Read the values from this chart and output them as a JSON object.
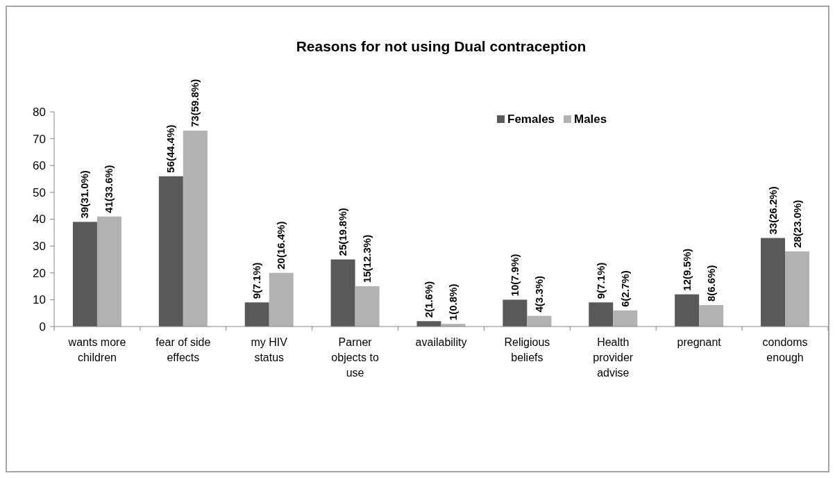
{
  "chart_data": {
    "type": "bar",
    "title": "Reasons for not using Dual contraception",
    "categories": [
      "wants more children",
      "fear of side effects",
      "my HIV status",
      "Parner objects to use",
      "availability",
      "Religious beliefs",
      "Health provider advise",
      "pregnant",
      "condoms enough"
    ],
    "series": [
      {
        "name": "Females",
        "color": "#595959",
        "values": [
          39,
          56,
          9,
          25,
          2,
          10,
          9,
          12,
          33
        ],
        "value_labels": [
          "39(31.0%)",
          "56(44.4%)",
          "9(7.1%)",
          "25(19.8%)",
          "2(1.6%)",
          "10(7.9%)",
          "9(7.1%)",
          "12(9.5%)",
          "33(26.2%)"
        ]
      },
      {
        "name": "Males",
        "color": "#b2b2b2",
        "values": [
          41,
          73,
          20,
          15,
          1,
          4,
          6,
          8,
          28
        ],
        "value_labels": [
          "41(33.6%)",
          "73(59.8%)",
          "20(16.4%)",
          "15(12.3%)",
          "1(0.8%)",
          "4(3.3%)",
          "6(2.7%)",
          "8(6.6%)",
          "28(23.0%)"
        ]
      }
    ],
    "ylim": [
      0,
      80
    ],
    "yticks": [
      0,
      10,
      20,
      30,
      40,
      50,
      60,
      70,
      80
    ],
    "legend": "top right",
    "grid": false
  }
}
